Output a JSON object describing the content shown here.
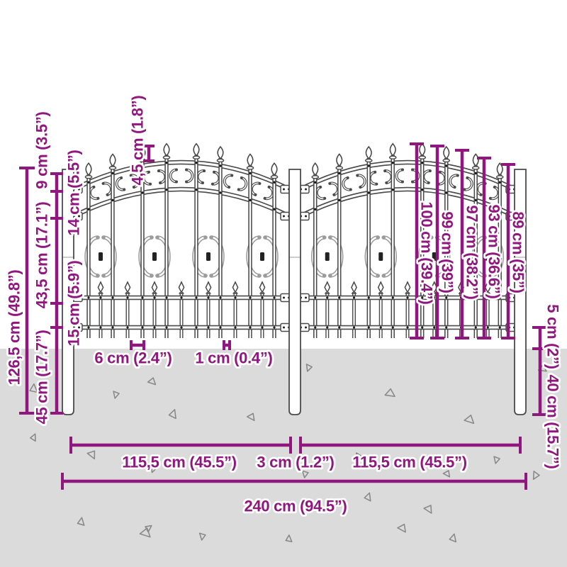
{
  "colors": {
    "dimension": "#8F177D",
    "ground": "#DBDBDB",
    "fence_dark": "#4A4A4A",
    "fence_light": "#9C9C9C"
  },
  "labels": {
    "left": {
      "total_height": "126,5 cm (49.8”)",
      "finial_section": "9 cm (3.5”)",
      "band_section": "14 cm (5.5”)",
      "middle_section": "43,5 cm (17.1”)",
      "lower_section": "15 cm (5.9”)",
      "underground_section": "45 cm (17.7”)"
    },
    "top": {
      "spear_tip": "4,5 cm (1.8”)"
    },
    "right": {
      "picket_heights": [
        "100 cm (39.4”)",
        "99 cm (39”)",
        "97 cm (38.2”)",
        "93 cm (36.6”)",
        "89 cm (35”)"
      ],
      "ground_clearance": "5 cm (2”)",
      "post_depth": "40 cm (15.7”)"
    },
    "bottom": {
      "picket_spacing": "6 cm (2.4”)",
      "picket_width": "1 cm (0.4”)",
      "left_panel_width": "115,5 cm (45.5”)",
      "center_gap": "3 cm (1.2”)",
      "right_panel_width": "115,5 cm (45.5”)",
      "total_width": "240 cm (94.5”)"
    }
  }
}
